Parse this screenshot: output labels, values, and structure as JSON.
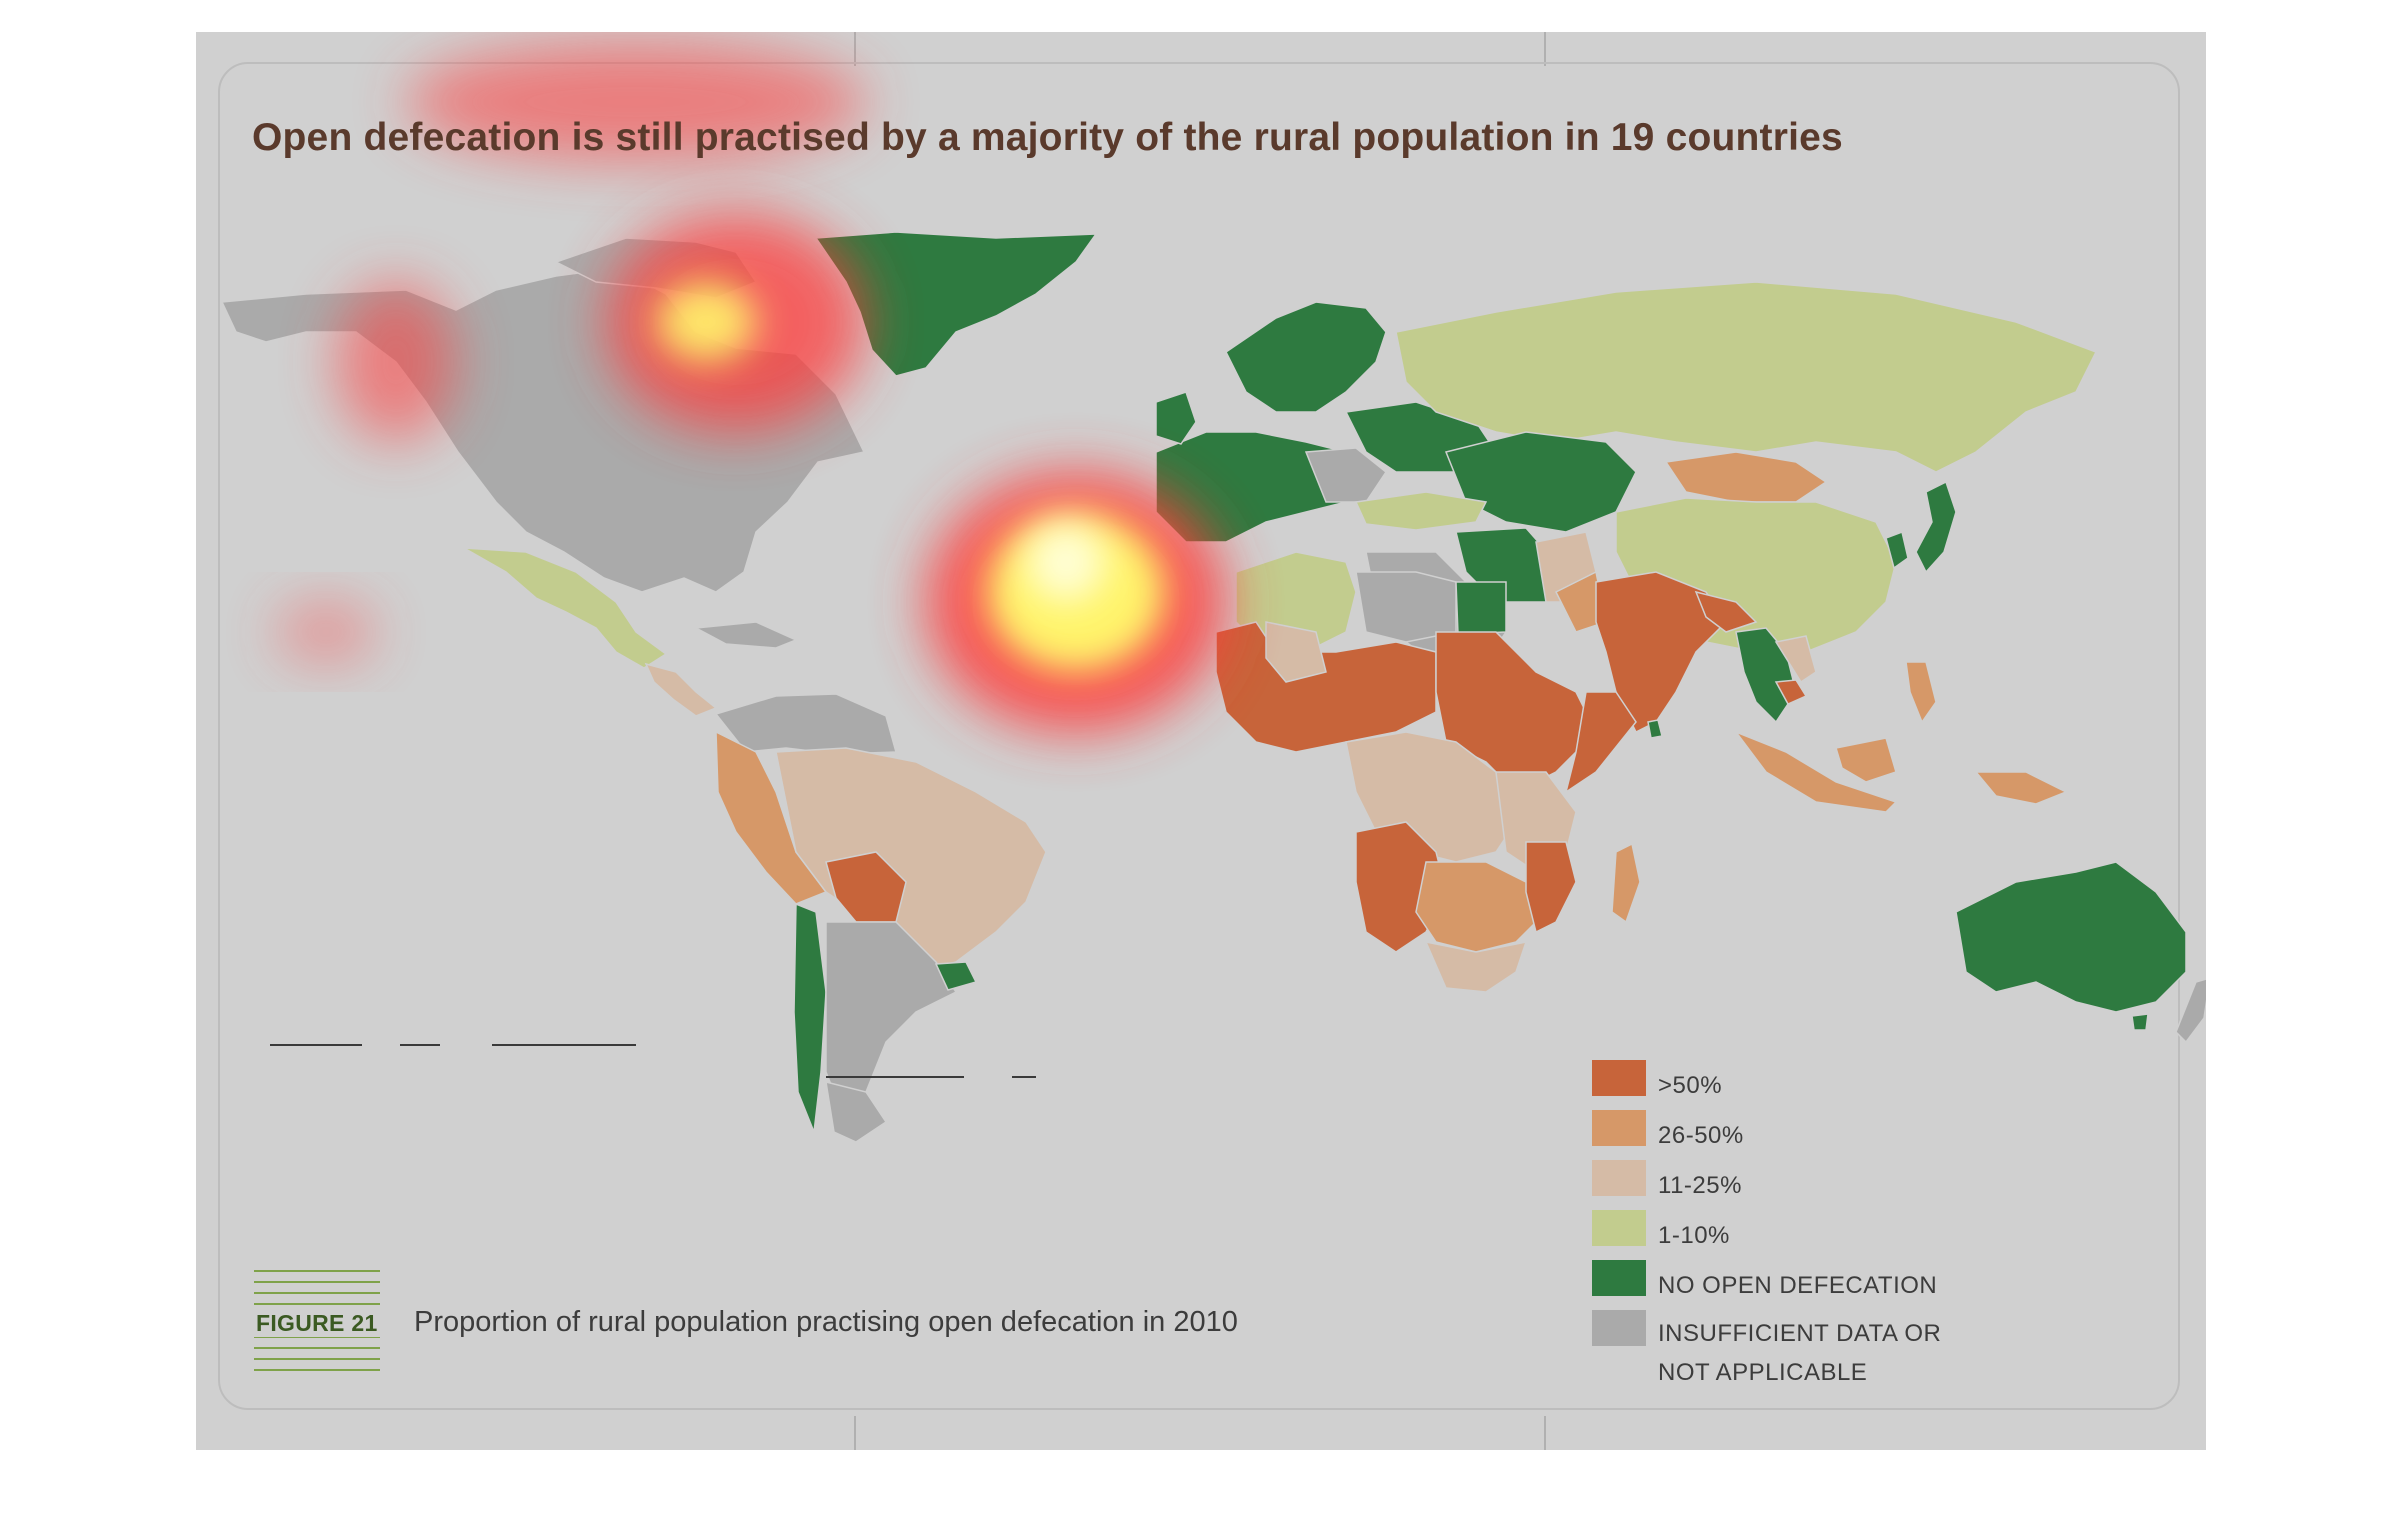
{
  "title": "Open defecation is still practised by a majority of the rural population in 19 countries",
  "colors": {
    "over_50": "#c7643a",
    "26_50": "#d69868",
    "11_25": "#d5bba6",
    "1_10": "#c2cc8e",
    "no_open_defecation": "#2e7a40",
    "insufficient_data": "#aaaaaa",
    "background": "#d0d0d0",
    "heat_red": "#ff3b3b",
    "heat_yellow": "#fff46a"
  },
  "legend": [
    {
      "key": "over_50",
      "label": ">50%"
    },
    {
      "key": "26_50",
      "label": "26-50%"
    },
    {
      "key": "11_25",
      "label": "11-25%"
    },
    {
      "key": "1_10",
      "label": "1-10%"
    },
    {
      "key": "no_open_defecation",
      "label": "NO OPEN DEFECATION"
    },
    {
      "key": "insufficient_data",
      "label": "INSUFFICIENT DATA OR NOT APPLICABLE"
    }
  ],
  "figure": {
    "number": "FIGURE 21",
    "caption": "Proportion of rural population practising open defecation in 2010"
  }
}
